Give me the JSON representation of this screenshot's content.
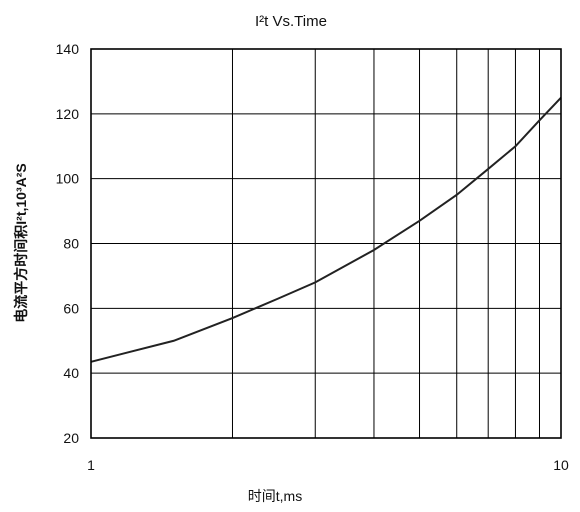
{
  "chart_data": {
    "type": "line",
    "title": "I²t  Vs.Time",
    "ylabel": "电流平方时间积I²t,10³A²S",
    "xlabel": "时间t,ms",
    "x_scale": "log",
    "xlim": [
      1,
      10
    ],
    "ylim": [
      20,
      140
    ],
    "x_ticks": [
      1,
      10
    ],
    "y_ticks": [
      20,
      40,
      60,
      80,
      100,
      120,
      140
    ],
    "grid": true,
    "series": [
      {
        "x": [
          1,
          1.5,
          2,
          2.5,
          3,
          4,
          5,
          6,
          7,
          8,
          9,
          10
        ],
        "y": [
          43.5,
          50,
          57,
          63,
          68,
          78,
          87,
          95,
          103,
          110,
          118,
          125
        ]
      }
    ]
  }
}
